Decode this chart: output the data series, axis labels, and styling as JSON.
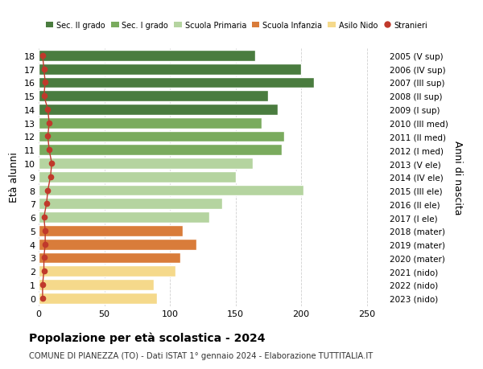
{
  "ages": [
    18,
    17,
    16,
    15,
    14,
    13,
    12,
    11,
    10,
    9,
    8,
    7,
    6,
    5,
    4,
    3,
    2,
    1,
    0
  ],
  "labels_right": [
    "2005 (V sup)",
    "2006 (IV sup)",
    "2007 (III sup)",
    "2008 (II sup)",
    "2009 (I sup)",
    "2010 (III med)",
    "2011 (II med)",
    "2012 (I med)",
    "2013 (V ele)",
    "2014 (IV ele)",
    "2015 (III ele)",
    "2016 (II ele)",
    "2017 (I ele)",
    "2018 (mater)",
    "2019 (mater)",
    "2020 (mater)",
    "2021 (nido)",
    "2022 (nido)",
    "2023 (nido)"
  ],
  "bar_values": [
    165,
    200,
    210,
    175,
    182,
    170,
    187,
    185,
    163,
    150,
    202,
    140,
    130,
    110,
    120,
    108,
    104,
    88,
    90
  ],
  "stranieri_values": [
    3,
    4,
    5,
    4,
    7,
    8,
    7,
    8,
    10,
    9,
    7,
    6,
    4,
    5,
    5,
    4,
    4,
    3,
    3
  ],
  "bar_colors": [
    "#4a7c3f",
    "#4a7c3f",
    "#4a7c3f",
    "#4a7c3f",
    "#4a7c3f",
    "#7aab5e",
    "#7aab5e",
    "#7aab5e",
    "#b5d4a0",
    "#b5d4a0",
    "#b5d4a0",
    "#b5d4a0",
    "#b5d4a0",
    "#d97c3a",
    "#d97c3a",
    "#d97c3a",
    "#f5d98b",
    "#f5d98b",
    "#f5d98b"
  ],
  "legend_colors": [
    "#4a7c3f",
    "#7aab5e",
    "#b5d4a0",
    "#d97c3a",
    "#f5d98b",
    "#c0392b"
  ],
  "legend_labels": [
    "Sec. II grado",
    "Sec. I grado",
    "Scuola Primaria",
    "Scuola Infanzia",
    "Asilo Nido",
    "Stranieri"
  ],
  "ylabel": "Età alunni",
  "ylabel_right": "Anni di nascita",
  "title": "Popolazione per età scolastica - 2024",
  "subtitle": "COMUNE DI PIANEZZA (TO) - Dati ISTAT 1° gennaio 2024 - Elaborazione TUTTITALIA.IT",
  "xlim": [
    0,
    265
  ],
  "xticks": [
    0,
    50,
    100,
    150,
    200,
    250
  ],
  "background_color": "#ffffff",
  "grid_color": "#d0d0d0",
  "stranieri_color": "#c0392b",
  "bar_height": 0.82
}
